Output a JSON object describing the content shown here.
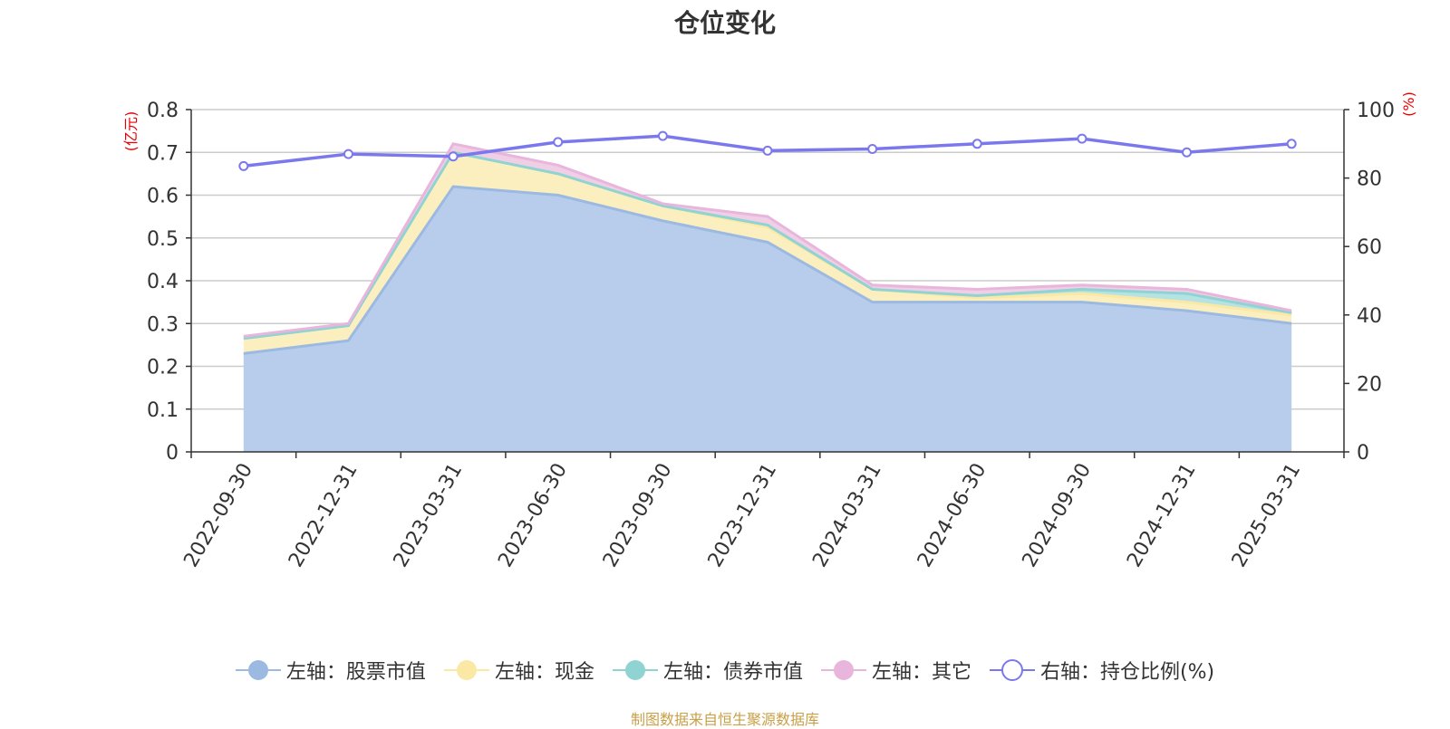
{
  "title": "仓位变化",
  "source_note": "制图数据来自恒生聚源数据库",
  "legend": [
    {
      "label": "左轴：股票市值",
      "color": "#9cb9e2"
    },
    {
      "label": "左轴：现金",
      "color": "#fae8a4"
    },
    {
      "label": "左轴：债券市值",
      "color": "#8fd3d3"
    },
    {
      "label": "左轴：其它",
      "color": "#e8b6dc"
    },
    {
      "label": "右轴：持仓比例(%)",
      "color": "#7b78ee"
    }
  ],
  "chart_data": {
    "type": "area",
    "stacked": true,
    "x": [
      "2022-09-30",
      "2022-12-31",
      "2023-03-31",
      "2023-06-30",
      "2023-09-30",
      "2023-12-31",
      "2024-03-31",
      "2024-06-30",
      "2024-09-30",
      "2024-12-31",
      "2025-03-31"
    ],
    "left_axis": {
      "label": "(亿元)",
      "range": [
        0,
        0.8
      ],
      "ticks": [
        "0",
        "0.1",
        "0.2",
        "0.3",
        "0.4",
        "0.5",
        "0.6",
        "0.7",
        "0.8"
      ]
    },
    "right_axis": {
      "label": "(%)",
      "range": [
        0,
        100
      ],
      "ticks": [
        "0",
        "20",
        "40",
        "60",
        "80",
        "100"
      ]
    },
    "series": [
      {
        "name": "左轴：股票市值",
        "axis": "left",
        "color": "#9cb9e2",
        "fill": "#b8cdeb",
        "values": [
          0.23,
          0.26,
          0.62,
          0.6,
          0.54,
          0.49,
          0.35,
          0.35,
          0.35,
          0.33,
          0.3
        ]
      },
      {
        "name": "左轴：现金",
        "axis": "left",
        "color": "#fae8a4",
        "fill": "#fbefbf",
        "values": [
          0.035,
          0.035,
          0.08,
          0.05,
          0.035,
          0.035,
          0.03,
          0.01,
          0.02,
          0.02,
          0.02
        ]
      },
      {
        "name": "左轴：债券市值",
        "axis": "left",
        "color": "#8fd3d3",
        "fill": "#b5e3e3",
        "values": [
          0,
          0,
          0,
          0,
          0,
          0.005,
          0,
          0.005,
          0.01,
          0.02,
          0.005
        ]
      },
      {
        "name": "左轴：其它",
        "axis": "left",
        "color": "#e8b6dc",
        "fill": "#f0cfe6",
        "values": [
          0.005,
          0.005,
          0.02,
          0.02,
          0.005,
          0.02,
          0.01,
          0.015,
          0.01,
          0.01,
          0.005
        ]
      },
      {
        "name": "右轴：持仓比例(%)",
        "axis": "right",
        "type": "line",
        "color": "#7b78ee",
        "values": [
          83.5,
          87.0,
          86.3,
          90.5,
          92.3,
          88.0,
          88.5,
          90.0,
          91.5,
          87.5,
          90.0
        ]
      }
    ],
    "grid": true,
    "legend_position": "bottom"
  }
}
